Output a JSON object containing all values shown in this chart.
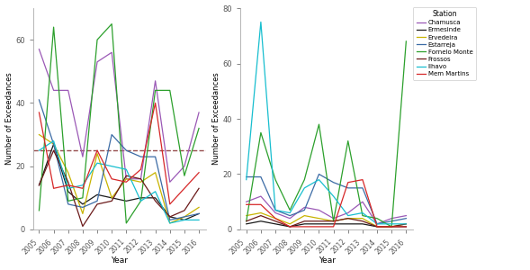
{
  "years": [
    2005,
    2006,
    2007,
    2008,
    2009,
    2010,
    2011,
    2012,
    2013,
    2014,
    2015,
    2016
  ],
  "stations": {
    "Chamusca": {
      "color": "#9B59B6",
      "panel_a": [
        57,
        44,
        44,
        23,
        53,
        56,
        16,
        16,
        47,
        15,
        20,
        37
      ],
      "panel_b": [
        10,
        12,
        6,
        4,
        8,
        7,
        4,
        6,
        10,
        2,
        4,
        5
      ]
    },
    "Ermesinde": {
      "color": "#1a1a1a",
      "panel_a": [
        14,
        27,
        12,
        8,
        11,
        10,
        9,
        10,
        10,
        4,
        3,
        5
      ],
      "panel_b": [
        2,
        3,
        2,
        1,
        2,
        2,
        2,
        2,
        2,
        1,
        1,
        1
      ]
    },
    "Ervedeira": {
      "color": "#C8B400",
      "panel_a": [
        30,
        27,
        18,
        5,
        24,
        10,
        16,
        15,
        18,
        2,
        4,
        7
      ],
      "panel_b": [
        5,
        6,
        4,
        2,
        5,
        4,
        3,
        4,
        4,
        1,
        1,
        2
      ]
    },
    "Estarreja": {
      "color": "#3B6BA5",
      "panel_a": [
        41,
        27,
        8,
        7,
        9,
        30,
        25,
        23,
        23,
        3,
        4,
        5
      ],
      "panel_b": [
        19,
        19,
        7,
        5,
        7,
        20,
        17,
        15,
        15,
        2,
        3,
        4
      ]
    },
    "Fornelo Monte": {
      "color": "#2CA02C",
      "panel_a": [
        6,
        64,
        9,
        10,
        60,
        65,
        2,
        9,
        44,
        44,
        17,
        32
      ],
      "panel_b": [
        3,
        35,
        18,
        7,
        18,
        38,
        3,
        32,
        5,
        4,
        1,
        68
      ]
    },
    "Frossos": {
      "color": "#6B1A1A",
      "panel_a": [
        14,
        25,
        15,
        1,
        8,
        9,
        17,
        16,
        9,
        4,
        6,
        13
      ],
      "panel_b": [
        3,
        5,
        3,
        1,
        3,
        3,
        3,
        4,
        3,
        1,
        1,
        2
      ]
    },
    "Ilhavo": {
      "color": "#17BECF",
      "panel_a": [
        25,
        28,
        13,
        14,
        21,
        20,
        19,
        9,
        12,
        2,
        3,
        3
      ],
      "panel_b": [
        18,
        75,
        7,
        6,
        15,
        18,
        12,
        5,
        6,
        2,
        2,
        2
      ]
    },
    "Mem Martins": {
      "color": "#D62728",
      "panel_a": [
        37,
        13,
        14,
        13,
        25,
        16,
        15,
        19,
        40,
        8,
        13,
        18
      ],
      "panel_b": [
        9,
        9,
        4,
        1,
        1,
        1,
        1,
        17,
        18,
        1,
        1,
        1
      ]
    }
  },
  "dashed_line_value": 25,
  "ylabel": "Number of Exceedances",
  "xlabel": "Year",
  "panel_a_ylim": [
    0,
    70
  ],
  "panel_b_ylim": [
    0,
    80
  ],
  "panel_a_yticks": [
    0,
    20,
    40,
    60
  ],
  "panel_b_yticks": [
    0,
    20,
    40,
    60,
    80
  ],
  "background_color": "#ffffff",
  "legend_title": "Station",
  "tick_color": "#555555",
  "spine_color": "#aaaaaa"
}
